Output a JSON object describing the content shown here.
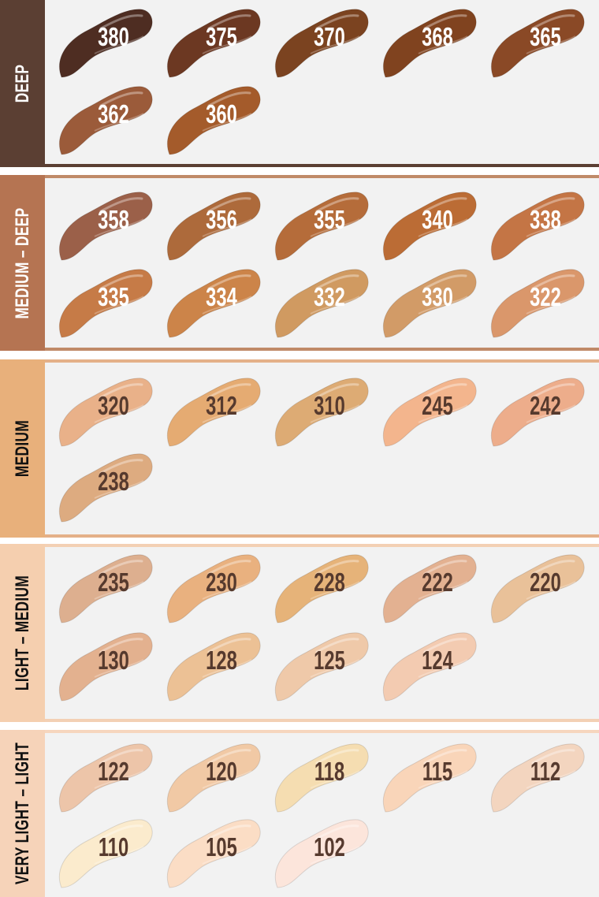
{
  "sections": [
    {
      "label": "DEEP",
      "band_color": "#5b3f33",
      "line_color": "#5b3f33",
      "label_color": "#ffffff",
      "num_color": "#ffffff",
      "shades": [
        {
          "number": "380",
          "color": "#4e2d22"
        },
        {
          "number": "375",
          "color": "#6c3822"
        },
        {
          "number": "370",
          "color": "#7b4320"
        },
        {
          "number": "368",
          "color": "#80431f"
        },
        {
          "number": "365",
          "color": "#8a4926"
        },
        {
          "number": "362",
          "color": "#9b5b3a"
        },
        {
          "number": "360",
          "color": "#a45b2b"
        }
      ]
    },
    {
      "label": "MEDIUM – DEEP",
      "band_color": "#b57452",
      "line_color": "#c08a68",
      "label_color": "#ffffff",
      "num_color": "#ffffff",
      "shades": [
        {
          "number": "358",
          "color": "#9b6049"
        },
        {
          "number": "356",
          "color": "#ad6a3b"
        },
        {
          "number": "355",
          "color": "#b56c3a"
        },
        {
          "number": "340",
          "color": "#bb6c35"
        },
        {
          "number": "338",
          "color": "#c47545"
        },
        {
          "number": "335",
          "color": "#c67b47"
        },
        {
          "number": "334",
          "color": "#cc8449"
        },
        {
          "number": "332",
          "color": "#d09a61"
        },
        {
          "number": "330",
          "color": "#d29b67"
        },
        {
          "number": "322",
          "color": "#da976b"
        }
      ]
    },
    {
      "label": "MEDIUM",
      "band_color": "#e8b07b",
      "line_color": "#e4b088",
      "label_color": "#111111",
      "num_color": "#563a2e",
      "shades": [
        {
          "number": "320",
          "color": "#e9b189"
        },
        {
          "number": "312",
          "color": "#e5ab72"
        },
        {
          "number": "310",
          "color": "#ddab74"
        },
        {
          "number": "245",
          "color": "#f3b58d"
        },
        {
          "number": "242",
          "color": "#edad8b"
        },
        {
          "number": "238",
          "color": "#ddab80"
        }
      ]
    },
    {
      "label": "LIGHT – MEDIUM",
      "band_color": "#f5cfaf",
      "line_color": "#f3d0b4",
      "label_color": "#111111",
      "num_color": "#563a2e",
      "shades": [
        {
          "number": "235",
          "color": "#ddaf8f"
        },
        {
          "number": "230",
          "color": "#e9b17f"
        },
        {
          "number": "228",
          "color": "#e6b379"
        },
        {
          "number": "222",
          "color": "#e3b191"
        },
        {
          "number": "220",
          "color": "#e9c199"
        },
        {
          "number": "130",
          "color": "#e3b18f"
        },
        {
          "number": "128",
          "color": "#ecc195"
        },
        {
          "number": "125",
          "color": "#efc9a9"
        },
        {
          "number": "124",
          "color": "#f3cbb1"
        }
      ]
    },
    {
      "label": "VERY LIGHT – LIGHT",
      "band_color": "#f6d3b9",
      "line_color": "#f6d6be",
      "label_color": "#111111",
      "num_color": "#563a2e",
      "shades": [
        {
          "number": "122",
          "color": "#edc5a9"
        },
        {
          "number": "120",
          "color": "#f1c9a5"
        },
        {
          "number": "118",
          "color": "#f5ddb1"
        },
        {
          "number": "115",
          "color": "#f9d5b9"
        },
        {
          "number": "112",
          "color": "#f3d5bf"
        },
        {
          "number": "110",
          "color": "#fbebcd"
        },
        {
          "number": "105",
          "color": "#fbddc5"
        },
        {
          "number": "102",
          "color": "#fce5db"
        }
      ]
    }
  ]
}
